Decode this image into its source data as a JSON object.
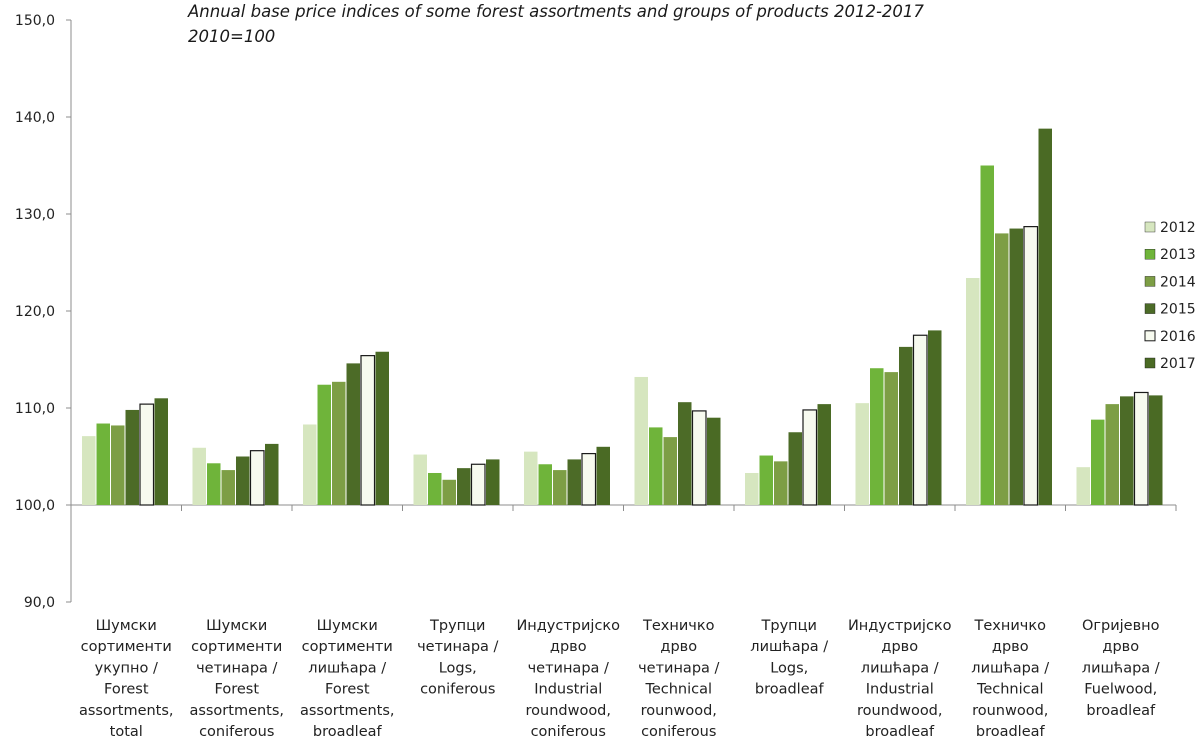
{
  "chart_data": {
    "type": "bar",
    "title": "Annual base price indices of some forest assortments and groups of products 2012-2017",
    "subtitle": "2010=100",
    "ylim": [
      90,
      150
    ],
    "ytick_values": [
      90,
      100,
      110,
      120,
      130,
      140,
      150
    ],
    "ytick_labels": [
      "90,0",
      "100,0",
      "110,0",
      "120,0",
      "130,0",
      "140,0",
      "150,0"
    ],
    "baseline": 100,
    "legend_position": "right",
    "categories": [
      [
        "Шумски",
        "сортименти",
        "укупно /",
        "Forest",
        "assortments,",
        "total"
      ],
      [
        "Шумски",
        "сортименти",
        "четинара /",
        "Forest",
        "assortments,",
        "coniferous"
      ],
      [
        "Шумски",
        "сортименти",
        "лишћара /",
        "Forest",
        "assortments,",
        "broadleaf"
      ],
      [
        "Трупци",
        "четинара /",
        "Logs,",
        "coniferous"
      ],
      [
        "Индустријско",
        "дрво",
        "четинара /",
        "Industrial",
        "roundwood,",
        "coniferous"
      ],
      [
        "Техничко",
        "дрво",
        "четинара /",
        "Technical",
        "rounwood,",
        "coniferous"
      ],
      [
        "Трупци",
        "лишћара /",
        "Logs,",
        "broadleaf"
      ],
      [
        "Индустријско",
        "дрво",
        "лишћара /",
        "Industrial",
        "roundwood,",
        "broadleaf"
      ],
      [
        "Техничко",
        "дрво",
        "лишћара /",
        "Technical",
        "rounwood,",
        "broadleaf"
      ],
      [
        "Огријевно",
        "дрво",
        "лишћара /",
        "Fuelwood,",
        "broadleaf"
      ]
    ],
    "series": [
      {
        "name": "2012",
        "color": "#d6e6bf",
        "values": [
          107.1,
          105.9,
          108.3,
          105.2,
          105.5,
          113.2,
          103.3,
          110.5,
          123.4,
          103.9
        ]
      },
      {
        "name": "2013",
        "color": "#6fb43a",
        "values": [
          108.4,
          104.3,
          112.4,
          103.3,
          104.2,
          108.0,
          105.1,
          114.1,
          135.0,
          108.8
        ]
      },
      {
        "name": "2014",
        "color": "#7d9e45",
        "values": [
          108.2,
          103.6,
          112.7,
          102.6,
          103.6,
          107.0,
          104.5,
          113.7,
          128.0,
          110.4
        ]
      },
      {
        "name": "2015",
        "color": "#4c6b27",
        "values": [
          109.8,
          105.0,
          114.6,
          103.8,
          104.7,
          110.6,
          107.5,
          116.3,
          128.5,
          111.2
        ]
      },
      {
        "name": "2016",
        "color": "#f7faef",
        "values": [
          110.4,
          105.6,
          115.4,
          104.2,
          105.3,
          109.7,
          109.8,
          117.5,
          128.7,
          111.6
        ]
      },
      {
        "name": "2017",
        "color": "#4a6a24",
        "values": [
          111.0,
          106.3,
          115.8,
          104.7,
          106.0,
          109.0,
          110.4,
          118.0,
          138.8,
          111.3
        ]
      }
    ]
  }
}
